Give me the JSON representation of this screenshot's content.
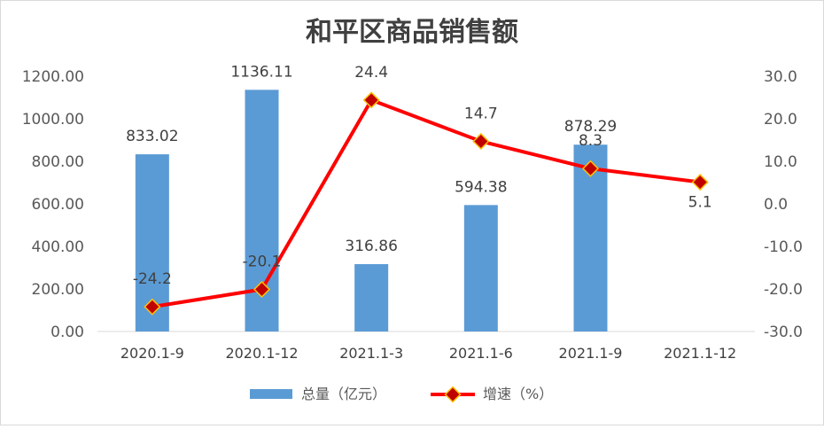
{
  "chart_data": {
    "type": "bar+line",
    "title": "和平区商品销售额",
    "categories": [
      "2020.1-9",
      "2020.1-12",
      "2021.1-3",
      "2021.1-6",
      "2021.1-9",
      "2021.1-12"
    ],
    "series": [
      {
        "name": "总量（亿元）",
        "type": "bar",
        "axis": "left",
        "color": "#5B9BD5",
        "values": [
          833.02,
          1136.11,
          316.86,
          594.38,
          878.29,
          null
        ],
        "labels": [
          "833.02",
          "1136.11",
          "316.86",
          "594.38",
          "878.29",
          ""
        ]
      },
      {
        "name": "增速（%）",
        "type": "line",
        "axis": "right",
        "color": "#FF0000",
        "marker_color": "#C00000",
        "values": [
          -24.2,
          -20.1,
          24.4,
          14.7,
          8.3,
          5.1
        ],
        "labels": [
          "-24.2",
          "-20.1",
          "24.4",
          "14.7",
          "8.3",
          "5.1"
        ]
      }
    ],
    "y_left": {
      "min": 0,
      "max": 1200,
      "step": 200,
      "ticks": [
        "0.00",
        "200.00",
        "400.00",
        "600.00",
        "800.00",
        "1000.00",
        "1200.00"
      ]
    },
    "y_right": {
      "min": -30,
      "max": 30,
      "step": 10,
      "ticks": [
        "-30.0",
        "-20.0",
        "-10.0",
        "0.0",
        "10.0",
        "20.0",
        "30.0"
      ]
    },
    "grid": false,
    "legend": "bottom"
  }
}
